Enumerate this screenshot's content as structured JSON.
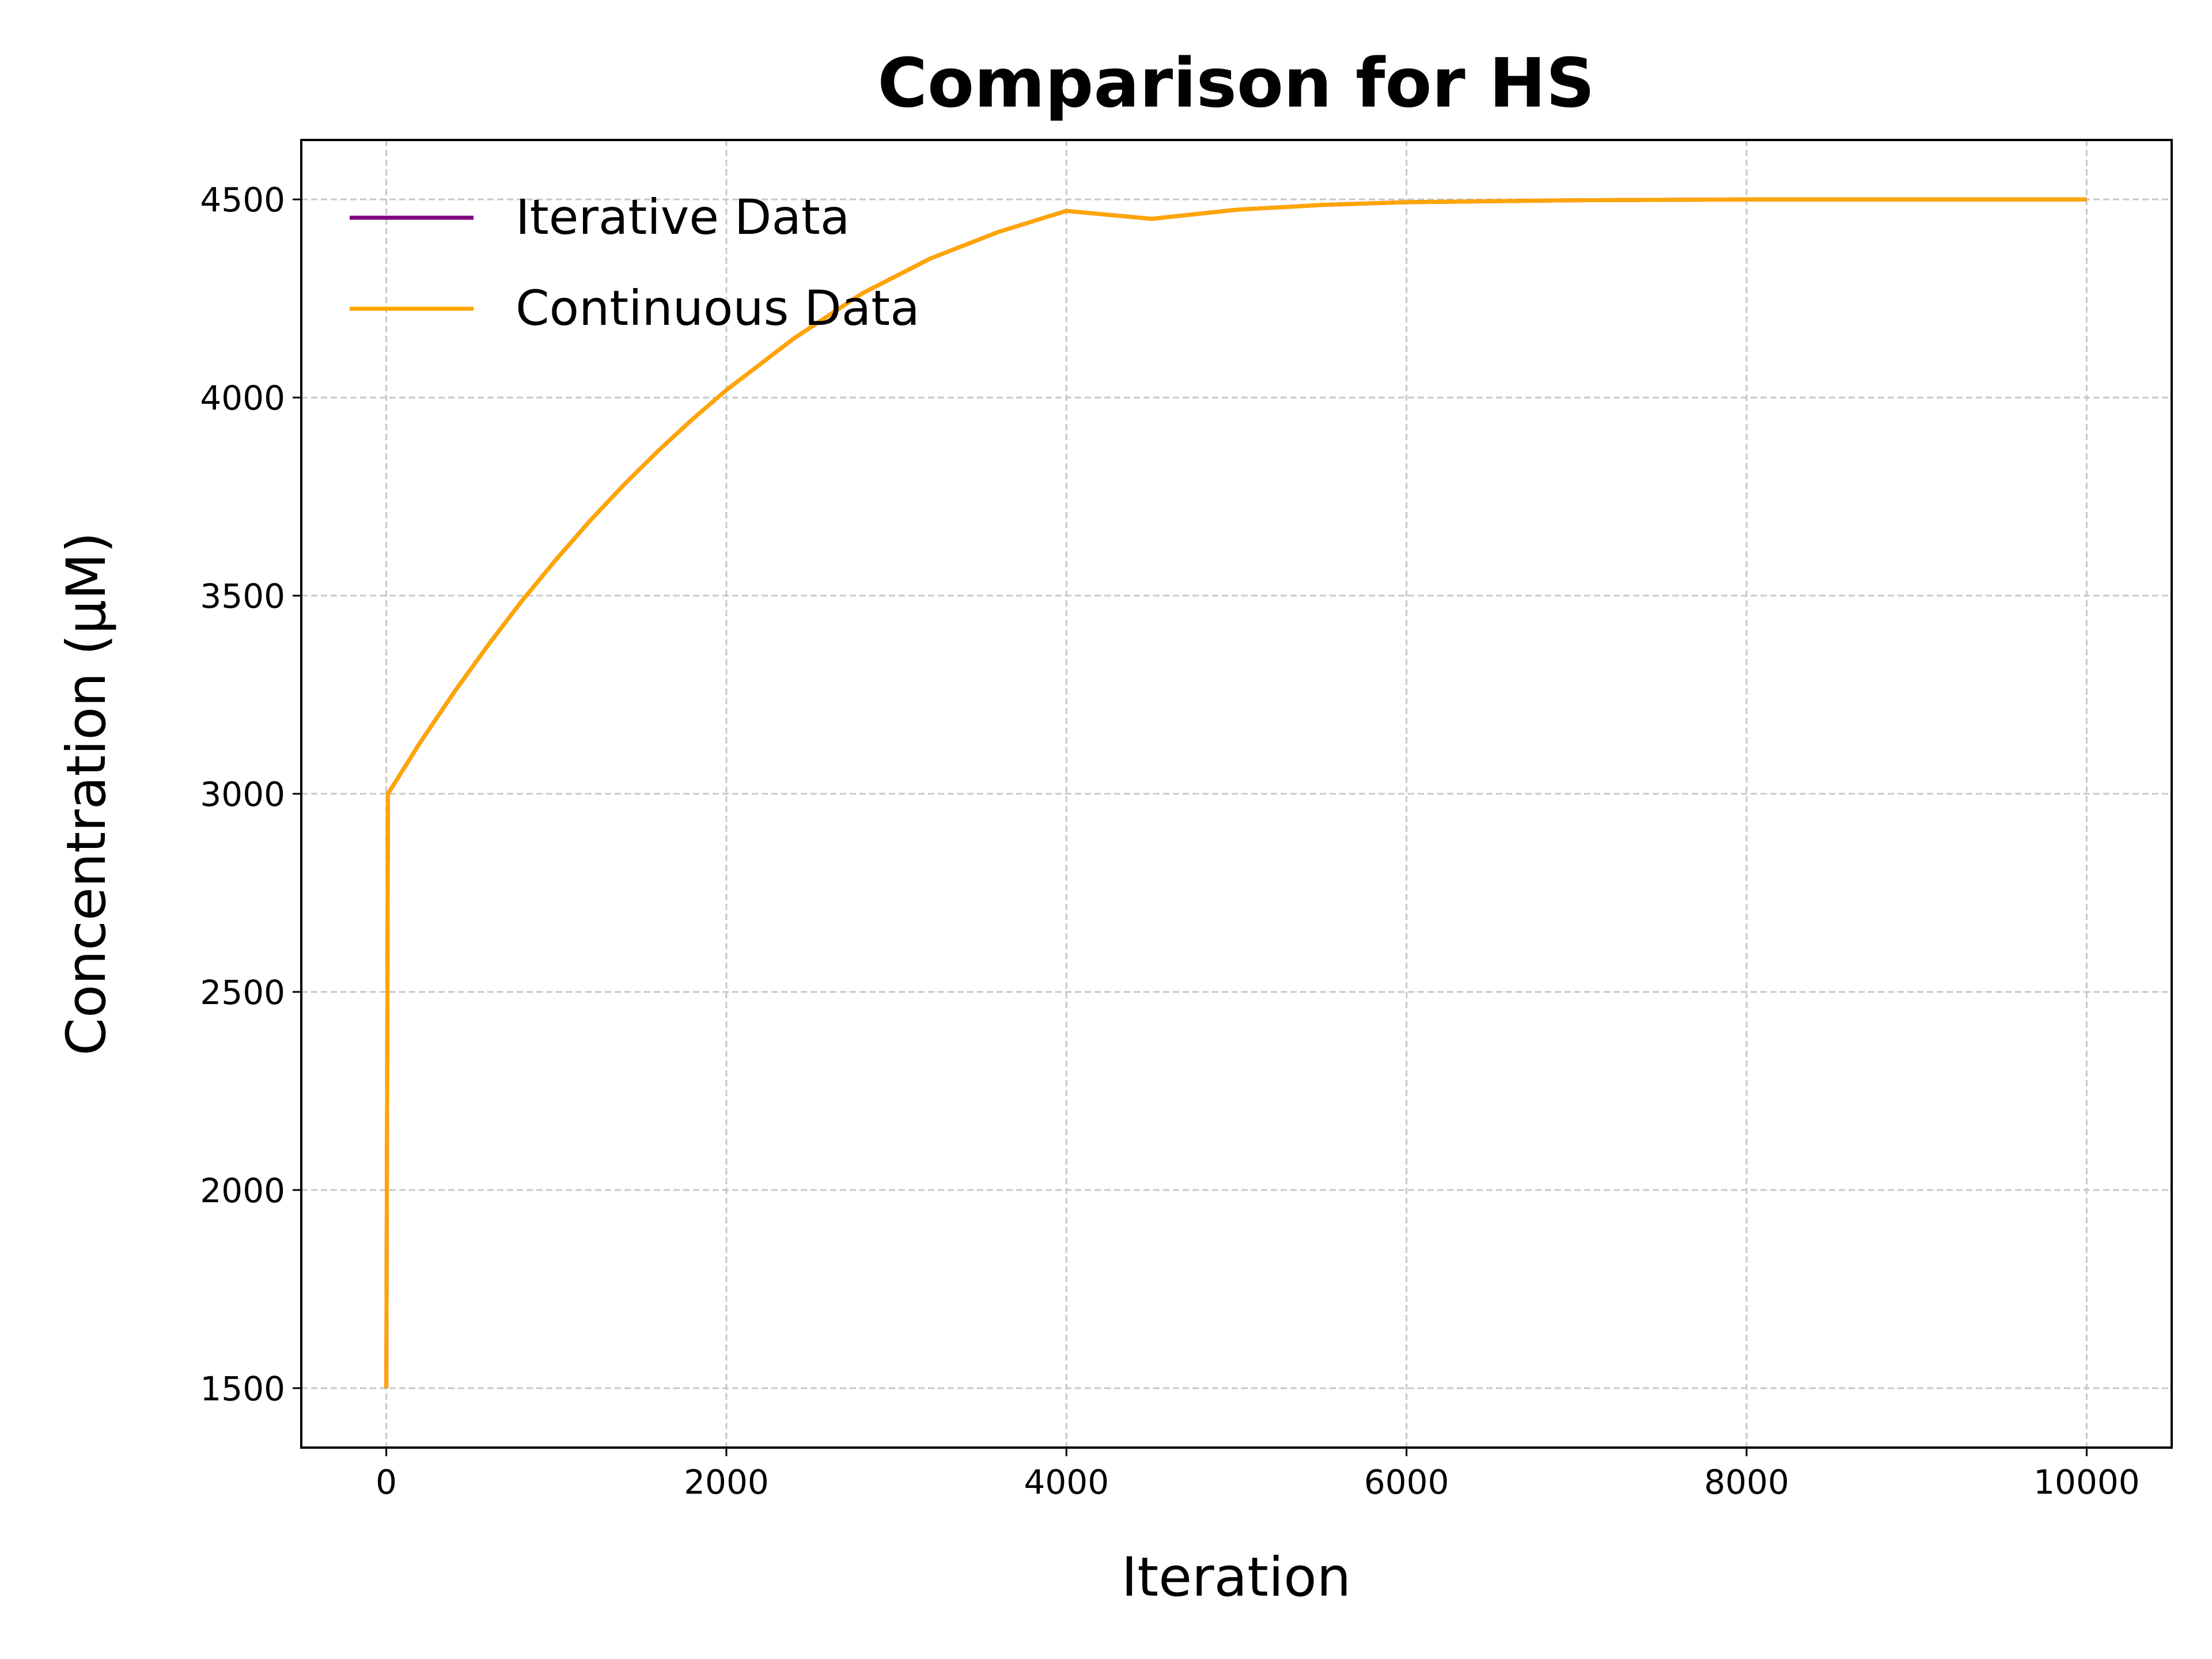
{
  "chart_data": {
    "type": "line",
    "title": "Comparison for HS",
    "xlabel": "Iteration",
    "ylabel": "Concentration (μM)",
    "xlim": [
      -500,
      10500
    ],
    "ylim": [
      1350,
      4650
    ],
    "x_ticks": [
      0,
      2000,
      4000,
      6000,
      8000,
      10000
    ],
    "y_ticks": [
      1500,
      2000,
      2500,
      3000,
      3500,
      4000,
      4500
    ],
    "grid": true,
    "legend_position": "top-left",
    "series": [
      {
        "name": "Iterative Data",
        "color": "#800080",
        "x": [
          0,
          10,
          200,
          400,
          600,
          800,
          1000,
          1200,
          1400,
          1600,
          1800,
          2000,
          2400,
          2800,
          3200,
          3600,
          4000,
          4500,
          5000,
          5500,
          6000,
          7000,
          8000,
          9000,
          10000
        ],
        "y": [
          1500,
          3000,
          3130,
          3257,
          3376,
          3488,
          3592,
          3690,
          3781,
          3866,
          3945,
          4019,
          4150,
          4263,
          4351,
          4418,
          4471,
          4451,
          4474,
          4486,
          4493,
          4498,
          4500,
          4500,
          4500
        ]
      },
      {
        "name": "Continuous Data",
        "color": "#FFA500",
        "x": [
          0,
          10,
          200,
          400,
          600,
          800,
          1000,
          1200,
          1400,
          1600,
          1800,
          2000,
          2400,
          2800,
          3200,
          3600,
          4000,
          4500,
          5000,
          5500,
          6000,
          7000,
          8000,
          9000,
          10000
        ],
        "y": [
          1500,
          3000,
          3130,
          3257,
          3376,
          3488,
          3592,
          3690,
          3781,
          3866,
          3945,
          4019,
          4150,
          4263,
          4351,
          4418,
          4471,
          4451,
          4474,
          4486,
          4493,
          4498,
          4500,
          4500,
          4500
        ]
      }
    ]
  }
}
